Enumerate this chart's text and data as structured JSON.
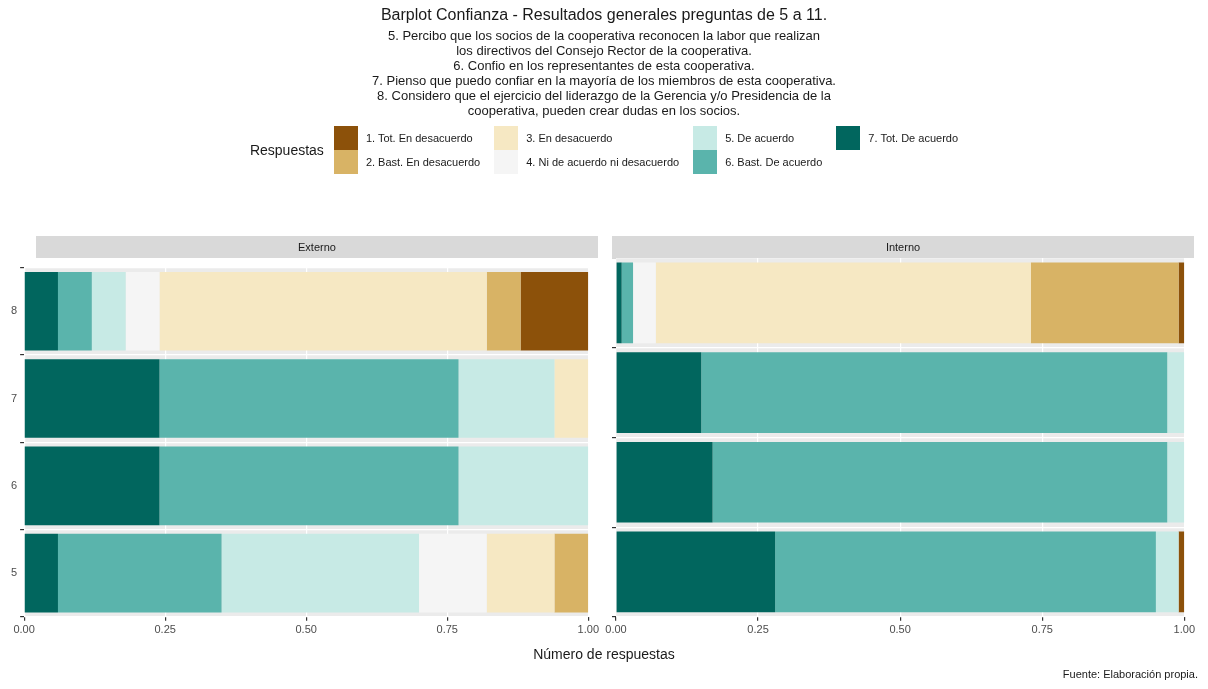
{
  "chart_data": [
    {
      "type": "bar",
      "orientation": "horizontal",
      "stacked": true,
      "title": "Barplot Confianza - Resultados generales preguntas de 5 a 11.",
      "subtitle": "5. Percibo que los socios de la cooperativa reconocen la labor que realizan\nlos directivos del Consejo Rector de la cooperativa.\n6. Confio en los representantes de esta cooperativa.\n7. Pienso que puedo confiar en la mayoría de los miembros de esta cooperativa.\n8. Considero que el ejercicio del liderazgo de la Gerencia y/o Presidencia de la\ncooperativa, pueden crear dudas en los socios.",
      "legend_title": "Respuestas",
      "legend": "top",
      "xlabel": "Número de respuestas",
      "annotations": [
        "Externo",
        "Fuente: Elaboración propia."
      ],
      "categories": [
        "8",
        "7",
        "6",
        "5"
      ],
      "xlim": [
        0,
        1
      ],
      "xticks": [
        {
          "value": 0,
          "label": "0.00"
        },
        {
          "value": 0.25,
          "label": "0.25"
        },
        {
          "value": 0.5,
          "label": "0.50"
        },
        {
          "value": 0.75,
          "label": "0.75"
        },
        {
          "value": 1,
          "label": "1.00"
        }
      ],
      "grid": true,
      "series": [
        {
          "name": "7. Tot. De acuerdo",
          "color": "#01665e",
          "values": [
            0.06,
            0.24,
            0.24,
            0.06
          ]
        },
        {
          "name": "6. Bast. De acuerdo",
          "color": "#5ab4ac",
          "values": [
            0.06,
            0.53,
            0.53,
            0.29
          ]
        },
        {
          "name": "5. De acuerdo",
          "color": "#c7eae5",
          "values": [
            0.06,
            0.17,
            0.23,
            0.35
          ]
        },
        {
          "name": "4. Ni de acuerdo ni desacuerdo",
          "color": "#f5f5f5",
          "values": [
            0.06,
            0,
            0,
            0.12
          ]
        },
        {
          "name": "3. En desacuerdo",
          "color": "#f6e8c3",
          "values": [
            0.58,
            0.06,
            0,
            0.12
          ]
        },
        {
          "name": "2. Bast. En desacuerdo",
          "color": "#d8b365",
          "values": [
            0.06,
            0,
            0,
            0.06
          ]
        },
        {
          "name": "1. Tot. En desacuerdo",
          "color": "#8c510a",
          "values": [
            0.12,
            0,
            0,
            0
          ]
        }
      ]
    },
    {
      "type": "bar",
      "orientation": "horizontal",
      "stacked": true,
      "annotations": [
        "Interno"
      ],
      "tick_labels": "x",
      "categories": [
        "8",
        "7",
        "6",
        "5"
      ],
      "xlim": [
        0,
        1
      ],
      "xticks": [
        {
          "value": 0,
          "label": "0.00"
        },
        {
          "value": 0.25,
          "label": "0.25"
        },
        {
          "value": 0.5,
          "label": "0.50"
        },
        {
          "value": 0.75,
          "label": "0.75"
        },
        {
          "value": 1,
          "label": "1.00"
        }
      ],
      "grid": true,
      "series": [
        {
          "color": "#01665e",
          "values": [
            0.01,
            0.15,
            0.17,
            0.28
          ]
        },
        {
          "color": "#5ab4ac",
          "values": [
            0.02,
            0.82,
            0.8,
            0.67
          ]
        },
        {
          "color": "#c7eae5",
          "values": [
            0,
            0.03,
            0.03,
            0.04
          ]
        },
        {
          "color": "#f5f5f5",
          "values": [
            0.04,
            0,
            0,
            0
          ]
        },
        {
          "color": "#f6e8c3",
          "values": [
            0.66,
            0,
            0,
            0
          ]
        },
        {
          "color": "#d8b365",
          "values": [
            0.26,
            0,
            0,
            0
          ]
        },
        {
          "color": "#8c510a",
          "values": [
            0.01,
            0,
            0,
            0.01
          ]
        }
      ]
    }
  ]
}
